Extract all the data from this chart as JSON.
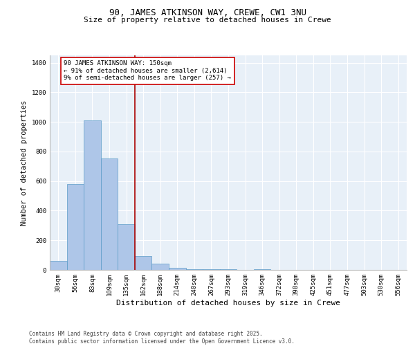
{
  "title1": "90, JAMES ATKINSON WAY, CREWE, CW1 3NU",
  "title2": "Size of property relative to detached houses in Crewe",
  "xlabel": "Distribution of detached houses by size in Crewe",
  "ylabel": "Number of detached properties",
  "categories": [
    "30sqm",
    "56sqm",
    "83sqm",
    "109sqm",
    "135sqm",
    "162sqm",
    "188sqm",
    "214sqm",
    "240sqm",
    "267sqm",
    "293sqm",
    "319sqm",
    "346sqm",
    "372sqm",
    "398sqm",
    "425sqm",
    "451sqm",
    "477sqm",
    "503sqm",
    "530sqm",
    "556sqm"
  ],
  "values": [
    60,
    578,
    1010,
    755,
    310,
    95,
    40,
    15,
    5,
    5,
    3,
    0,
    5,
    0,
    0,
    0,
    0,
    0,
    0,
    0,
    0
  ],
  "bar_color": "#aec6e8",
  "bar_edge_color": "#5a9bc7",
  "red_line_x": 4.5,
  "annotation_text": "90 JAMES ATKINSON WAY: 150sqm\n← 91% of detached houses are smaller (2,614)\n9% of semi-detached houses are larger (257) →",
  "annotation_box_color": "#ffffff",
  "annotation_box_edge": "#cc0000",
  "ylim": [
    0,
    1450
  ],
  "yticks": [
    0,
    200,
    400,
    600,
    800,
    1000,
    1200,
    1400
  ],
  "background_color": "#e8f0f8",
  "footer_text": "Contains HM Land Registry data © Crown copyright and database right 2025.\nContains public sector information licensed under the Open Government Licence v3.0.",
  "title1_fontsize": 9,
  "title2_fontsize": 8,
  "xlabel_fontsize": 8,
  "ylabel_fontsize": 7.5,
  "tick_fontsize": 6.5,
  "annotation_fontsize": 6.5,
  "footer_fontsize": 5.5
}
